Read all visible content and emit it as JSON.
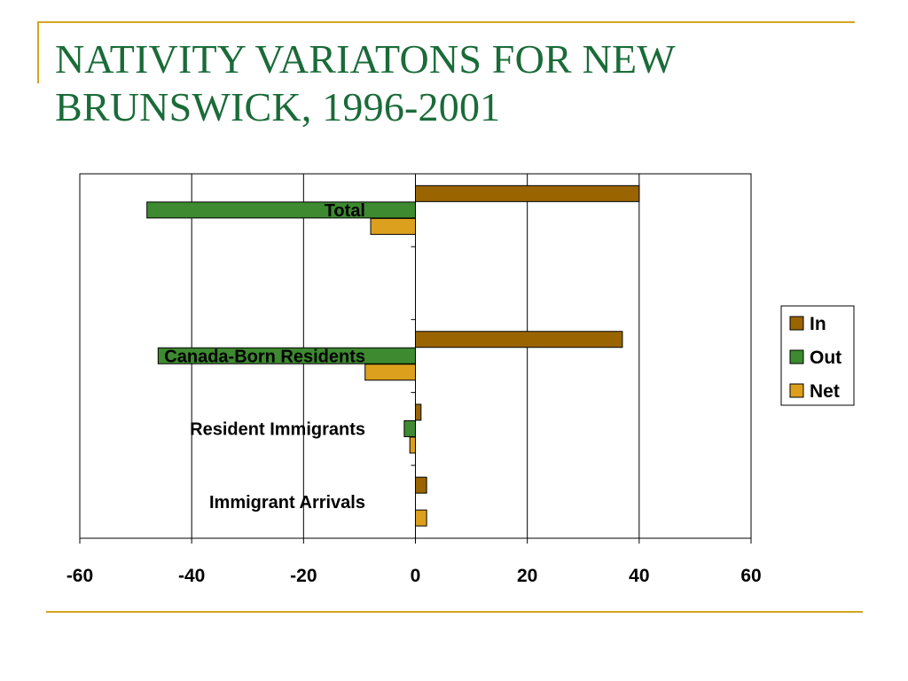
{
  "slide": {
    "title_line1": "NATIVITY VARIATONS FOR NEW",
    "title_line2": "BRUNSWICK, 1996-2001"
  },
  "colors": {
    "accent_rule": "#d4a51f",
    "title_text": "#1a6b38"
  },
  "chart_data": {
    "type": "bar",
    "orientation": "horizontal",
    "title": "",
    "xlabel": "",
    "ylabel": "",
    "xlim": [
      -60,
      60
    ],
    "xticks": [
      -60,
      -40,
      -20,
      0,
      20,
      40,
      60
    ],
    "grid": "vertical",
    "legend_position": "right",
    "categories": [
      "Total",
      "",
      "Canada-Born Residents",
      "Resident Immigrants",
      "Immigrant Arrivals"
    ],
    "series": [
      {
        "name": "In",
        "color": "#9a6400",
        "values": [
          40,
          null,
          37,
          1,
          2
        ]
      },
      {
        "name": "Out",
        "color": "#3d8a30",
        "values": [
          -48,
          null,
          -46,
          -2,
          0
        ]
      },
      {
        "name": "Net",
        "color": "#dca01e",
        "values": [
          -8,
          null,
          -9,
          -1,
          2
        ]
      }
    ]
  }
}
